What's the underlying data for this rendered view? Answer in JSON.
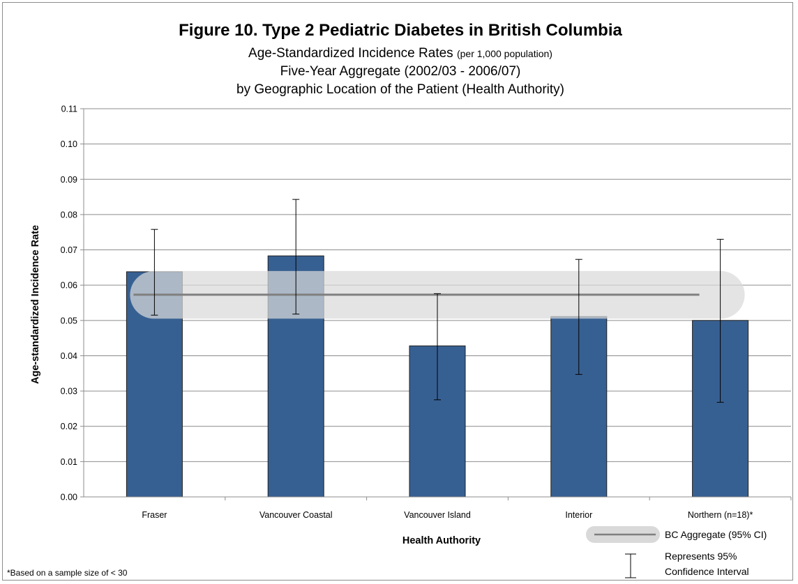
{
  "chart_data": {
    "type": "bar",
    "title": "Figure 10. Type 2 Pediatric Diabetes in British Columbia",
    "subtitle_main": "Age-Standardized Incidence Rates",
    "subtitle_note": "(per 1,000 population)",
    "subtitle_line2": "Five-Year Aggregate (2002/03 - 2006/07)",
    "subtitle_line3": "by  Geographic Location of the Patient (Health Authority)",
    "xlabel": "Health Authority",
    "ylabel": "Age-standardized Incidence Rate",
    "ylim": [
      0,
      0.11
    ],
    "yticks": [
      "0.00",
      "0.01",
      "0.02",
      "0.03",
      "0.04",
      "0.05",
      "0.06",
      "0.07",
      "0.08",
      "0.09",
      "0.10",
      "0.11"
    ],
    "categories": [
      "Fraser",
      "Vancouver Coastal",
      "Vancouver Island",
      "Interior",
      "Northern (n=18)*"
    ],
    "values": [
      0.0638,
      0.0683,
      0.0428,
      0.0511,
      0.05
    ],
    "ci_lower": [
      0.0515,
      0.0518,
      0.0275,
      0.0347,
      0.0268
    ],
    "ci_upper": [
      0.0758,
      0.0843,
      0.0576,
      0.0673,
      0.073
    ],
    "aggregate": {
      "label": "BC Aggregate (95% CI)",
      "value": 0.0573,
      "ci_lower": 0.0505,
      "ci_upper": 0.064
    },
    "legend_ci_line1": "Represents 95%",
    "legend_ci_line2": "Confidence Interval",
    "footnote": "*Based on a sample size of < 30",
    "colors": {
      "bar": "#376092",
      "bar_edge": "#1f1f1f",
      "grid": "#8c8c8c",
      "aggregate_line": "#7f7f7f",
      "aggregate_band": "#d9d9d9"
    },
    "grid": true,
    "legend_position": "bottom-right"
  }
}
